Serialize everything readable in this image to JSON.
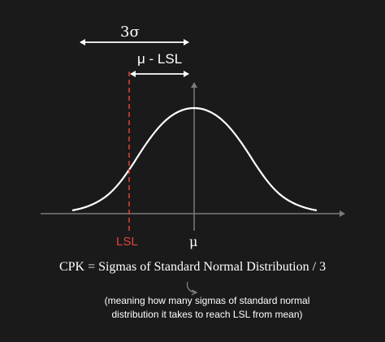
{
  "colors": {
    "background": "#1a1a1a",
    "foreground": "#ffffff",
    "axis": "#7a7a7a",
    "lsl": "#e0453a"
  },
  "labels": {
    "three_sigma": "3σ",
    "mu_minus_lsl": "μ - LSL",
    "lsl": "LSL",
    "mu": "μ"
  },
  "formula": "CPK = Sigmas of Standard Normal Distribution / 3",
  "note": {
    "line1": "(meaning how many sigmas of standard normal",
    "line2": "distribution it takes to reach LSL from mean)"
  }
}
